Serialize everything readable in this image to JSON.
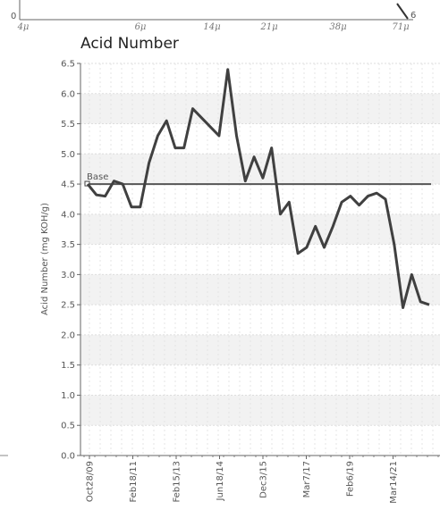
{
  "top_strip": {
    "y_tick": "0",
    "x_ticks": [
      "4μ",
      "6μ",
      "14μ",
      "21μ",
      "38μ",
      "71μ"
    ],
    "end_label": "6"
  },
  "chart_data": {
    "type": "line",
    "title": "Acid Number",
    "ylabel": "Acid Number (mg KOH/g)",
    "xlabel": "",
    "ylim": [
      0,
      6.5
    ],
    "yticks": [
      "0.0",
      "0.5",
      "1.0",
      "1.5",
      "2.0",
      "2.5",
      "3.0",
      "3.5",
      "4.0",
      "4.5",
      "5.0",
      "5.5",
      "6.0",
      "6.5"
    ],
    "x_tick_labels": [
      "Oct28/09",
      "Feb18/11",
      "Feb15/13",
      "Jun18/14",
      "Dec3/15",
      "Mar7/17",
      "Feb6/19",
      "Mar14/21"
    ],
    "grid": true,
    "series": [
      {
        "values": [
          4.5,
          4.32,
          4.3,
          4.55,
          4.5,
          4.12,
          4.12,
          4.85,
          5.3,
          5.55,
          5.1,
          5.1,
          5.75,
          5.6,
          5.45,
          5.3,
          6.4,
          5.3,
          4.55,
          4.95,
          4.6,
          5.1,
          4.0,
          4.2,
          3.35,
          3.45,
          3.8,
          3.45,
          3.8,
          4.2,
          4.3,
          4.15,
          4.3,
          4.35,
          4.25,
          3.5,
          2.45,
          3.0,
          2.55,
          2.5
        ],
        "color": "#404040"
      }
    ],
    "baseline": {
      "label": "Base",
      "value": 4.5,
      "color": "#555555"
    }
  }
}
